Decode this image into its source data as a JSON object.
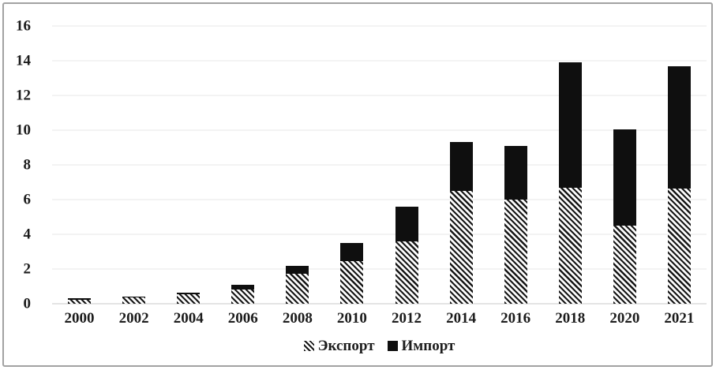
{
  "figure": {
    "background": "#ffffff",
    "frame_border_color": "#a2a2a2",
    "text_color": "#1c1c1c",
    "gridline_color": "#e7e7e7",
    "baseline_color": "#c9c9c9"
  },
  "chart_data": {
    "type": "bar",
    "stacked": true,
    "title": "",
    "xlabel": "",
    "ylabel": "",
    "categories": [
      "2000",
      "2002",
      "2004",
      "2006",
      "2008",
      "2010",
      "2012",
      "2014",
      "2016",
      "2018",
      "2020",
      "2021"
    ],
    "series": [
      {
        "name": "Экспорт",
        "style": "diagonal-hatch",
        "color": "#171717",
        "values": [
          0.25,
          0.35,
          0.55,
          0.8,
          1.75,
          2.45,
          3.6,
          6.5,
          6.0,
          6.7,
          4.5,
          6.65
        ]
      },
      {
        "name": "Импорт",
        "style": "solid",
        "color": "#0f0f0f",
        "values": [
          0.07,
          0.08,
          0.1,
          0.3,
          0.45,
          1.05,
          2.0,
          2.8,
          3.1,
          7.2,
          5.55,
          7.05
        ]
      }
    ],
    "ylim": [
      0,
      16
    ],
    "yticks": [
      0,
      2,
      4,
      6,
      8,
      10,
      12,
      14,
      16
    ],
    "grid": "horizontal",
    "legend_position": "bottom-center"
  }
}
